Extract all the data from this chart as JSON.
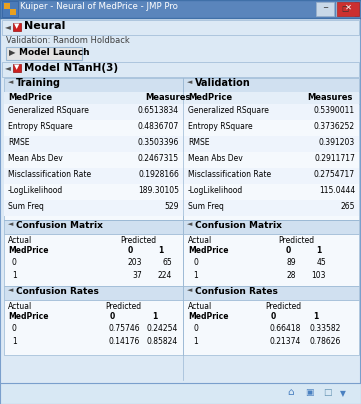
{
  "title_bar": "Kuiper - Neural of MedPrice - JMP Pro",
  "title_bar_bg": "#5080b8",
  "title_bar_fg": "#ffffff",
  "window_bg": "#dce9f5",
  "outer_border": "#7a9fcc",
  "panel_header_bg": "#d5e3f0",
  "section_bg": "#e8f2fb",
  "table_bg": "#f5f9fd",
  "border_color": "#9ab8d4",
  "neural_label": "Neural",
  "validation_text": "Validation: Random Holdback",
  "model_launch": "Model Launch",
  "model_name": "Model NTanH(3)",
  "training_label": "Training",
  "validation_label": "Validation",
  "training_metrics": [
    [
      "Generalized RSquare",
      "0.6513834"
    ],
    [
      "Entropy RSquare",
      "0.4836707"
    ],
    [
      "RMSE",
      "0.3503396"
    ],
    [
      "Mean Abs Dev",
      "0.2467315"
    ],
    [
      "Misclassification Rate",
      "0.1928166"
    ],
    [
      "-LogLikelihood",
      "189.30105"
    ],
    [
      "Sum Freq",
      "529"
    ]
  ],
  "validation_metrics": [
    [
      "Generalized RSquare",
      "0.5390011"
    ],
    [
      "Entropy RSquare",
      "0.3736252"
    ],
    [
      "RMSE",
      "0.391203"
    ],
    [
      "Mean Abs Dev",
      "0.2911717"
    ],
    [
      "Misclassification Rate",
      "0.2754717"
    ],
    [
      "-LogLikelihood",
      "115.0444"
    ],
    [
      "Sum Freq",
      "265"
    ]
  ],
  "cm_train_rows": [
    [
      "0",
      "203",
      "65"
    ],
    [
      "1",
      "37",
      "224"
    ]
  ],
  "cm_val_rows": [
    [
      "0",
      "89",
      "45"
    ],
    [
      "1",
      "28",
      "103"
    ]
  ],
  "cr_train_rows": [
    [
      "0",
      "0.75746",
      "0.24254"
    ],
    [
      "1",
      "0.14176",
      "0.85824"
    ]
  ],
  "cr_val_rows": [
    [
      "0",
      "0.66418",
      "0.33582"
    ],
    [
      "1",
      "0.21374",
      "0.78626"
    ]
  ]
}
